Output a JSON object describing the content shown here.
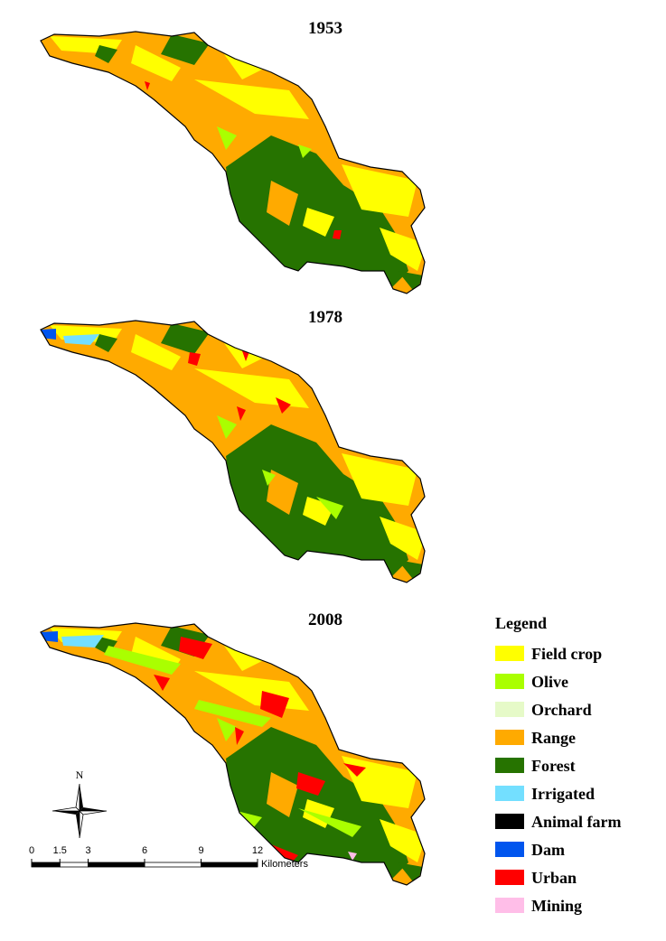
{
  "maps": [
    {
      "title": "1953"
    },
    {
      "title": "1978"
    },
    {
      "title": "2008"
    }
  ],
  "legend": {
    "title": "Legend",
    "items": [
      {
        "label": "Field crop",
        "color": "#ffff00"
      },
      {
        "label": "Olive",
        "color": "#aaff00"
      },
      {
        "label": "Orchard",
        "color": "#e6fac8"
      },
      {
        "label": "Range",
        "color": "#ffaa00"
      },
      {
        "label": "Forest",
        "color": "#267300"
      },
      {
        "label": "Irrigated",
        "color": "#73dfff"
      },
      {
        "label": "Animal farm",
        "color": "#000000"
      },
      {
        "label": "Dam",
        "color": "#0055ee"
      },
      {
        "label": "Urban",
        "color": "#ff0000"
      },
      {
        "label": "Mining",
        "color": "#ffbee8"
      }
    ]
  },
  "scale_bar": {
    "ticks": [
      0,
      1.5,
      3,
      6,
      9,
      12
    ],
    "unit": "Kilometers"
  },
  "north_arrow": {
    "label": "N"
  }
}
